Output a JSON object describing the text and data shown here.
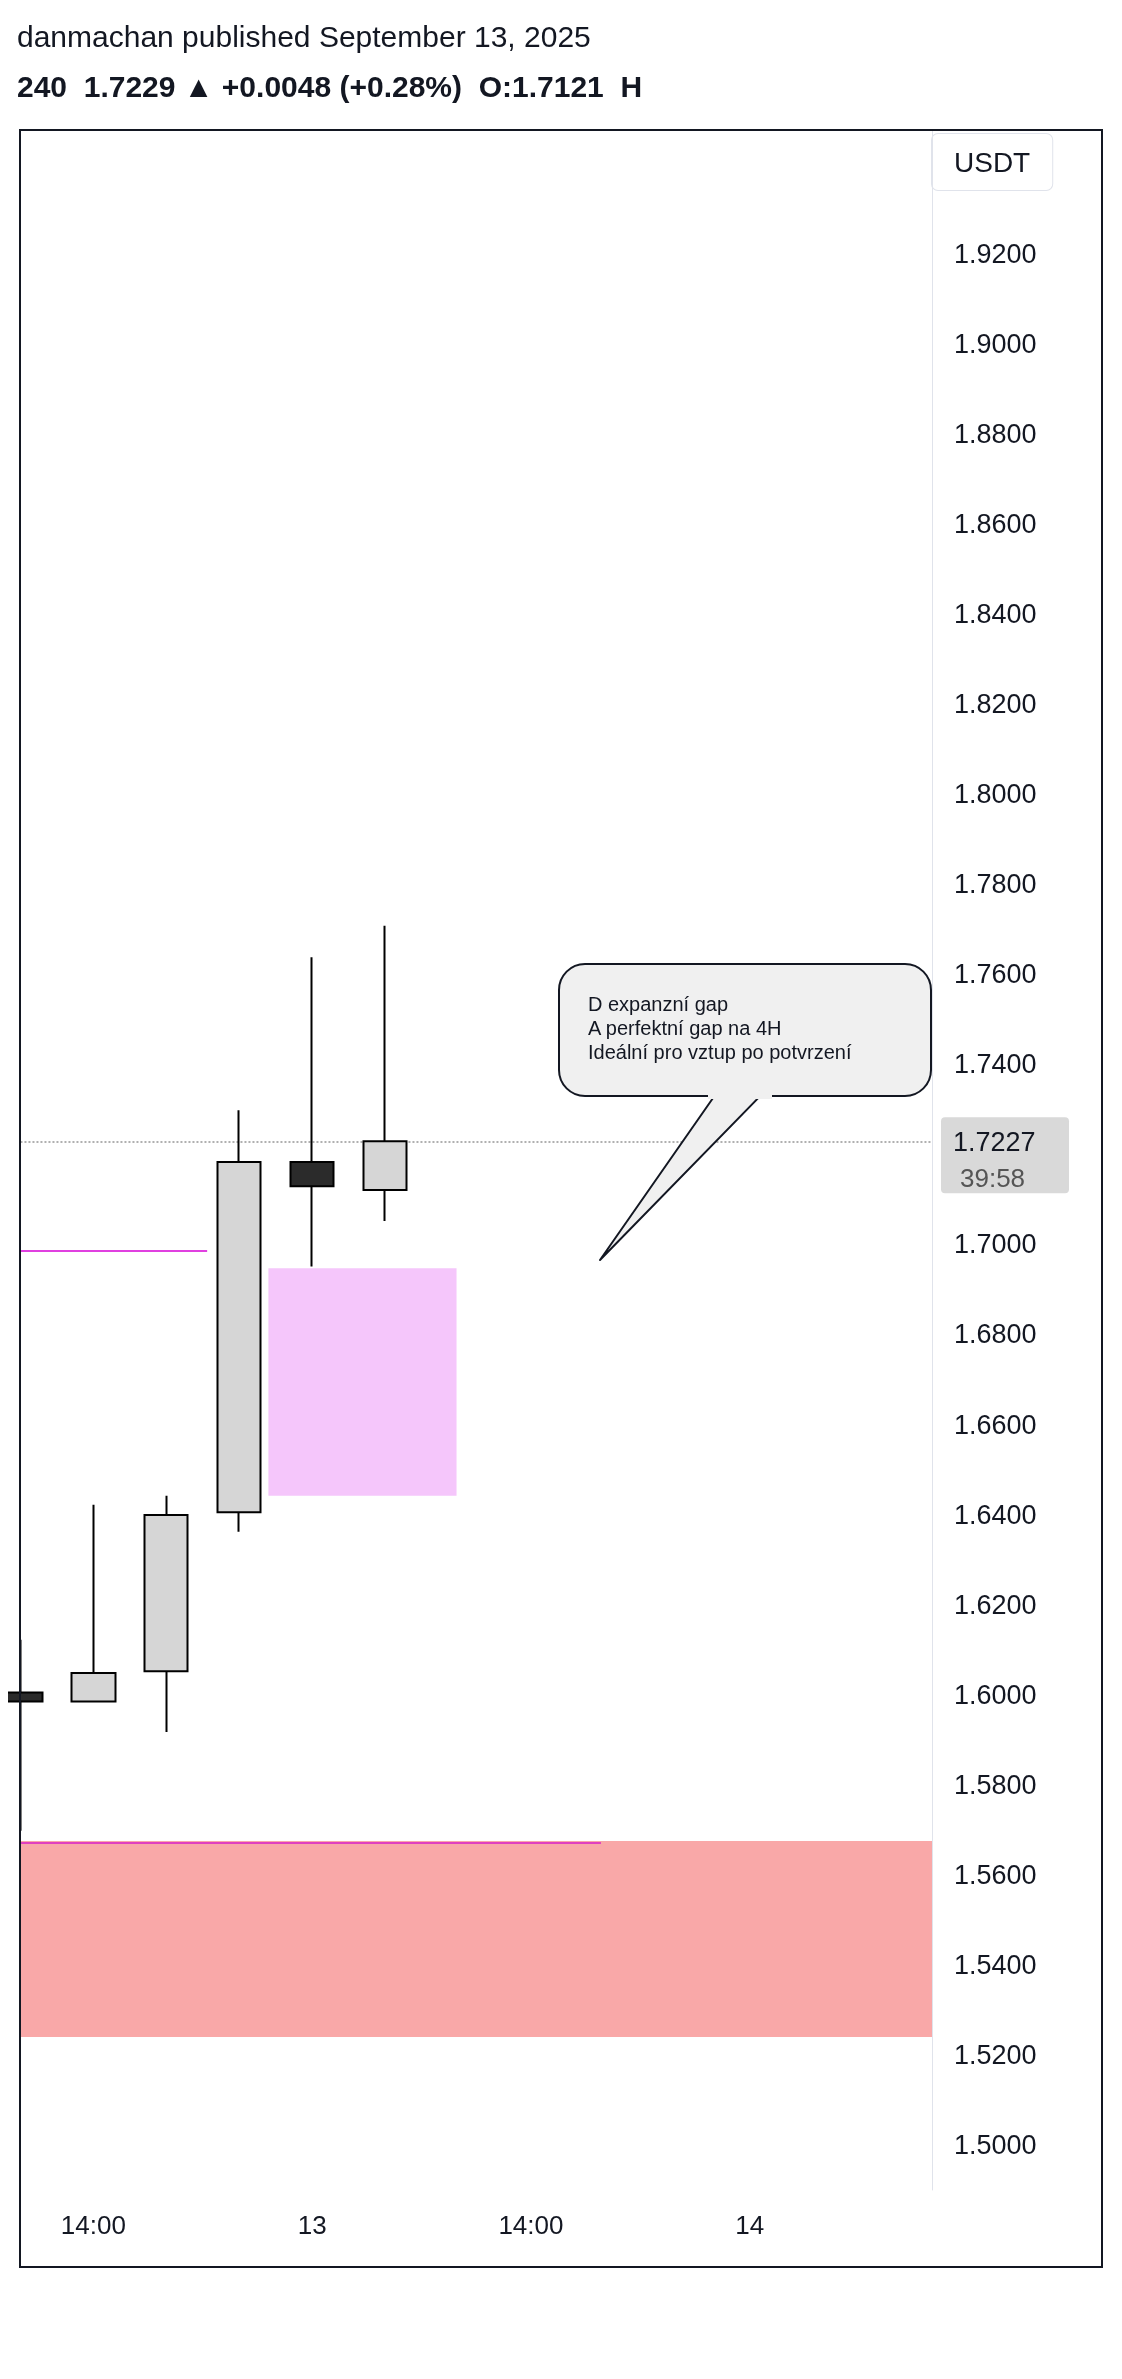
{
  "chart_data": {
    "type": "candlestick",
    "title": "danmachan published September 13, 2025",
    "subtitle": "240  1.7229 ▲ +0.0048 (+0.28%)  O:1.7121  H",
    "ylabel": "USDT",
    "categories": [
      null,
      "14:00",
      null,
      null,
      "13",
      null,
      null,
      "14:00",
      null,
      null,
      "14",
      null,
      null
    ],
    "ohlc": [
      [
        1.6005,
        1.6122,
        1.5698,
        1.5985
      ],
      [
        1.5985,
        1.6422,
        1.5985,
        1.6048
      ],
      [
        1.6052,
        1.6442,
        1.5917,
        1.6399
      ],
      [
        1.6405,
        1.7298,
        1.6362,
        1.7183
      ],
      [
        1.7183,
        1.7638,
        1.6951,
        1.7129
      ],
      [
        1.7121,
        1.7708,
        1.7052,
        1.7229
      ],
      null,
      null,
      null,
      null,
      null,
      null,
      null
    ],
    "colors": [
      "#2b2b2b",
      "#d6d6d6",
      "#d6d6d6",
      "#d6d6d6",
      "#2b2b2b",
      "#d6d6d6",
      null,
      null,
      null,
      null,
      null,
      null,
      null
    ],
    "ylim": [
      1.49,
      1.9475
    ],
    "yticks": [
      {
        "value": 1.5,
        "label": "1.5000"
      },
      {
        "value": 1.52,
        "label": "1.5200"
      },
      {
        "value": 1.54,
        "label": "1.5400"
      },
      {
        "value": 1.56,
        "label": "1.5600"
      },
      {
        "value": 1.58,
        "label": "1.5800"
      },
      {
        "value": 1.6,
        "label": "1.6000"
      },
      {
        "value": 1.62,
        "label": "1.6200"
      },
      {
        "value": 1.64,
        "label": "1.6400"
      },
      {
        "value": 1.66,
        "label": "1.6600"
      },
      {
        "value": 1.68,
        "label": "1.6800"
      },
      {
        "value": 1.7,
        "label": "1.7000"
      },
      {
        "value": 1.74,
        "label": "1.7400"
      },
      {
        "value": 1.76,
        "label": "1.7600"
      },
      {
        "value": 1.78,
        "label": "1.7800"
      },
      {
        "value": 1.8,
        "label": "1.8000"
      },
      {
        "value": 1.82,
        "label": "1.8200"
      },
      {
        "value": 1.84,
        "label": "1.8400"
      },
      {
        "value": 1.86,
        "label": "1.8600"
      },
      {
        "value": 1.88,
        "label": "1.8800"
      },
      {
        "value": 1.9,
        "label": "1.9000"
      },
      {
        "value": 1.92,
        "label": "1.9200"
      }
    ],
    "bands": [
      {
        "axis": "y",
        "from": 1.6442,
        "to": 1.6947,
        "color": "#f5c6fb"
      },
      {
        "axis": "y",
        "from": 1.524,
        "to": 1.5675,
        "color": "#f9a8a8"
      }
    ],
    "ref_lines": [
      {
        "axis": "y",
        "value": 1.7227,
        "label": "1.7227",
        "color": "#b0b0b0",
        "line_style": "dotted"
      },
      {
        "axis": "y",
        "value": 1.6985,
        "color": "#e040e0",
        "line_style": "solid"
      },
      {
        "axis": "y",
        "value": 1.5671,
        "color": "#e040c0",
        "line_style": "solid"
      }
    ],
    "annotations": [
      "39:58",
      "D expanzní gap\nA perfektní gap na 4H\nIdeální pro vztup po potvrzení"
    ],
    "grid": false
  }
}
